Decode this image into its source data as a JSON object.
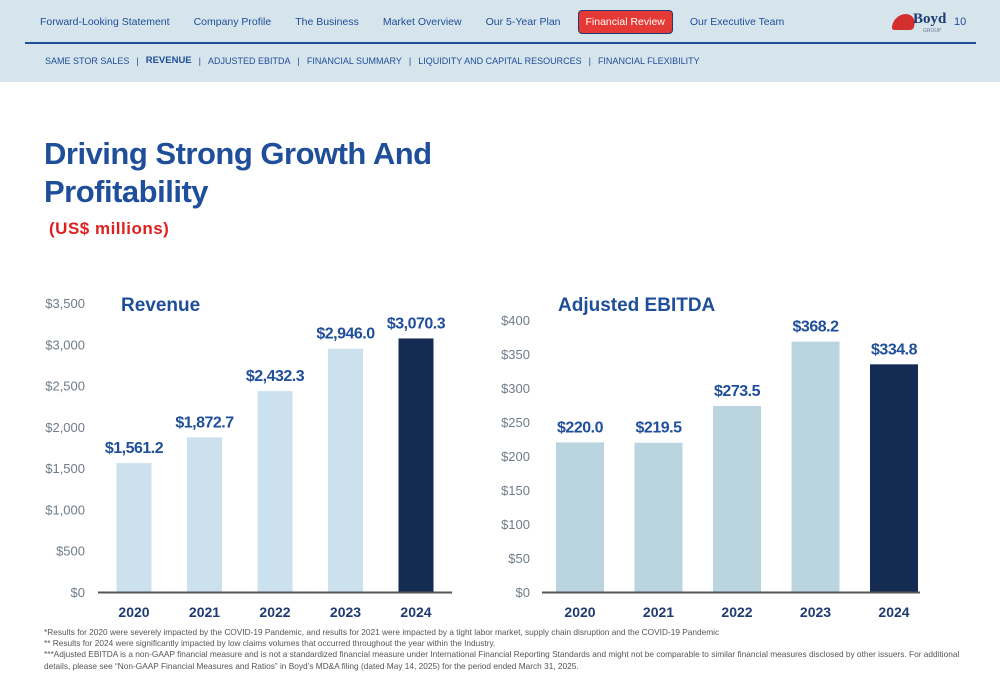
{
  "nav": {
    "items": [
      {
        "label": "Forward-Looking Statement",
        "active": false
      },
      {
        "label": "Company Profile",
        "active": false
      },
      {
        "label": "The Business",
        "active": false
      },
      {
        "label": "Market Overview",
        "active": false
      },
      {
        "label": "Our 5-Year Plan",
        "active": false
      },
      {
        "label": "Financial Review",
        "active": true
      },
      {
        "label": "Our Executive Team",
        "active": false
      }
    ],
    "page_number": "10",
    "logo_text": "Boyd",
    "logo_sub": "GROUP"
  },
  "subnav": {
    "items": [
      {
        "label": "SAME STOR SALES",
        "active": false
      },
      {
        "label": "REVENUE",
        "active": true
      },
      {
        "label": "ADJUSTED EBITDA",
        "active": false
      },
      {
        "label": "FINANCIAL SUMMARY",
        "active": false
      },
      {
        "label": "LIQUIDITY AND CAPITAL RESOURCES",
        "active": false
      },
      {
        "label": "FINANCIAL FLEXIBILITY",
        "active": false
      }
    ],
    "separator": "|"
  },
  "page": {
    "title": "Driving Strong Growth And Profitability",
    "units": "(US$ millions)"
  },
  "colors": {
    "accent": "#1f4e9a",
    "nav_active": "#e53935",
    "units_red": "#e02020",
    "bar_light_revenue": "#cbe1ee",
    "bar_light_ebitda": "#bad4e0",
    "bar_dark": "#152c52"
  },
  "chart_data": [
    {
      "type": "bar",
      "title": "Revenue",
      "categories": [
        "2020",
        "2021",
        "2022",
        "2023",
        "2024"
      ],
      "values": [
        1561.2,
        1872.7,
        2432.3,
        2946.0,
        3070.3
      ],
      "data_labels": [
        "$1,561.2",
        "$1,872.7",
        "$2,432.3",
        "$2,946.0",
        "$3,070.3"
      ],
      "highlight_index": 4,
      "ylim": [
        0,
        3500
      ],
      "yticks": [
        0,
        500,
        1000,
        1500,
        2000,
        2500,
        3000,
        3500
      ],
      "ytick_labels": [
        "$0",
        "$500",
        "$1,000",
        "$1,500",
        "$2,000",
        "$2,500",
        "$3,000",
        "$3,500"
      ],
      "grid": false
    },
    {
      "type": "bar",
      "title": "Adjusted EBITDA",
      "categories": [
        "2020",
        "2021",
        "2022",
        "2023",
        "2024"
      ],
      "values": [
        220.0,
        219.5,
        273.5,
        368.2,
        334.8
      ],
      "data_labels": [
        "$220.0",
        "$219.5",
        "$273.5",
        "$368.2",
        "$334.8"
      ],
      "highlight_index": 4,
      "ylim": [
        0,
        400
      ],
      "yticks": [
        0,
        50,
        100,
        150,
        200,
        250,
        300,
        350,
        400
      ],
      "ytick_labels": [
        "$0",
        "$50",
        "$100",
        "$150",
        "$200",
        "$250",
        "$300",
        "$350",
        "$400"
      ],
      "grid": false
    }
  ],
  "footnotes": [
    "*Results for 2020 were severely impacted by the COVID-19 Pandemic, and results for 2021 were impacted by a tight labor market, supply chain disruption and the COVID-19 Pandemic",
    "** Results for 2024 were significantly impacted by low claims volumes that occurred throughout the year within the Industry.",
    "***Adjusted EBITDA is a non-GAAP financial measure and is not a standardized financial measure under International Financial Reporting Standards and might not be comparable to similar financial measures disclosed by other issuers. For additional details, please see “Non-GAAP Financial Measures and Ratios” in Boyd’s MD&A filing (dated May 14, 2025) for the period ended March 31, 2025."
  ]
}
